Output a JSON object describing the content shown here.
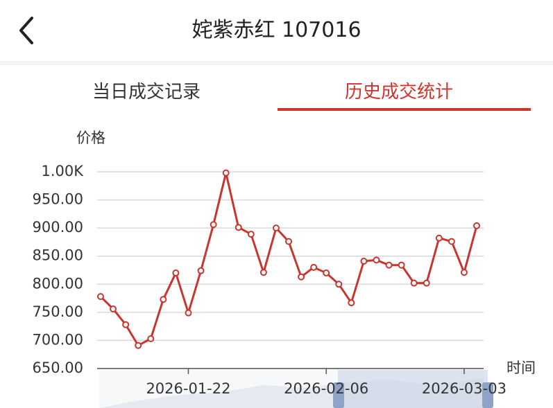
{
  "header": {
    "title": "姹紫赤红 107016"
  },
  "tabs": [
    "当日成交记录",
    "历史成交统计"
  ],
  "chart_data": {
    "type": "line",
    "y_label": "价格",
    "x_label": "时间",
    "categories": [
      null,
      null,
      null,
      null,
      null,
      null,
      null,
      "2026-01-22",
      null,
      null,
      null,
      null,
      null,
      null,
      null,
      null,
      null,
      null,
      "2026-02-06",
      null,
      null,
      null,
      null,
      null,
      null,
      null,
      null,
      null,
      null,
      "2026-03-03",
      null
    ],
    "values": [
      778,
      756,
      728,
      691,
      703,
      773,
      820,
      749,
      824,
      906,
      998,
      901,
      889,
      821,
      900,
      876,
      813,
      830,
      820,
      800,
      767,
      841,
      843,
      834,
      834,
      802,
      802,
      882,
      876,
      821,
      904
    ],
    "color": "#c8352e",
    "ylim": [
      650,
      1000
    ],
    "yticks": [
      {
        "value": 650,
        "label": "650.00"
      },
      {
        "value": 700,
        "label": "700.00"
      },
      {
        "value": 750,
        "label": "750.00"
      },
      {
        "value": 800,
        "label": "800.00"
      },
      {
        "value": 850,
        "label": "850.00"
      },
      {
        "value": 900,
        "label": "900.00"
      },
      {
        "value": 950,
        "label": "950.00"
      },
      {
        "value": 1000,
        "label": "1.00K"
      }
    ],
    "grid": true
  }
}
